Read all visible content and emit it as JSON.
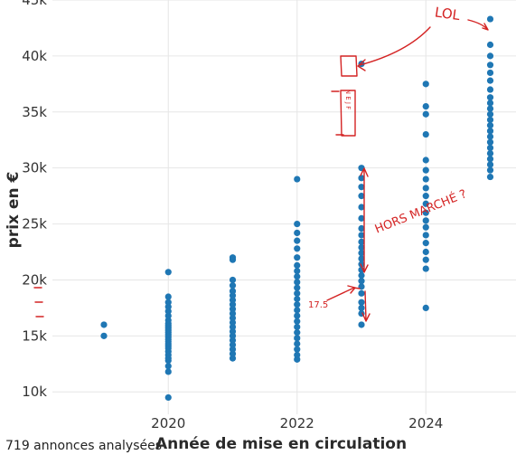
{
  "chart_data": {
    "type": "scatter",
    "xlabel": "Année de mise en circulation",
    "ylabel": "prix en €",
    "xlim": [
      2018.2,
      2025.4
    ],
    "ylim": [
      8000,
      45000
    ],
    "x_ticks": [
      2020,
      2022,
      2024
    ],
    "y_ticks": [
      10000,
      15000,
      20000,
      25000,
      30000,
      35000,
      40000,
      45000
    ],
    "x_tick_labels": [
      "2020",
      "2022",
      "2024"
    ],
    "y_tick_labels": [
      "10k",
      "15k",
      "20k",
      "25k",
      "30k",
      "35k",
      "40k",
      "45k"
    ],
    "grid": true,
    "marker_color": "#1f77b4",
    "series": [
      {
        "points": [
          [
            2019,
            16000
          ],
          [
            2019,
            15000
          ],
          [
            2020,
            9500
          ],
          [
            2020,
            11800
          ],
          [
            2020,
            12300
          ],
          [
            2020,
            12800
          ],
          [
            2020,
            13000
          ],
          [
            2020,
            13300
          ],
          [
            2020,
            13600
          ],
          [
            2020,
            13900
          ],
          [
            2020,
            14100
          ],
          [
            2020,
            14300
          ],
          [
            2020,
            14500
          ],
          [
            2020,
            14700
          ],
          [
            2020,
            14900
          ],
          [
            2020,
            15100
          ],
          [
            2020,
            15300
          ],
          [
            2020,
            15500
          ],
          [
            2020,
            15700
          ],
          [
            2020,
            15900
          ],
          [
            2020,
            16100
          ],
          [
            2020,
            16400
          ],
          [
            2020,
            16800
          ],
          [
            2020,
            17200
          ],
          [
            2020,
            17600
          ],
          [
            2020,
            18000
          ],
          [
            2020,
            18500
          ],
          [
            2020,
            20700
          ],
          [
            2021,
            13000
          ],
          [
            2021,
            13400
          ],
          [
            2021,
            13800
          ],
          [
            2021,
            14200
          ],
          [
            2021,
            14600
          ],
          [
            2021,
            15000
          ],
          [
            2021,
            15400
          ],
          [
            2021,
            15800
          ],
          [
            2021,
            16200
          ],
          [
            2021,
            16600
          ],
          [
            2021,
            17000
          ],
          [
            2021,
            17400
          ],
          [
            2021,
            17800
          ],
          [
            2021,
            18200
          ],
          [
            2021,
            18600
          ],
          [
            2021,
            19000
          ],
          [
            2021,
            19500
          ],
          [
            2021,
            20000
          ],
          [
            2021,
            21800
          ],
          [
            2021,
            22000
          ],
          [
            2022,
            12900
          ],
          [
            2022,
            13300
          ],
          [
            2022,
            13800
          ],
          [
            2022,
            14300
          ],
          [
            2022,
            14800
          ],
          [
            2022,
            15300
          ],
          [
            2022,
            15800
          ],
          [
            2022,
            16300
          ],
          [
            2022,
            16800
          ],
          [
            2022,
            17300
          ],
          [
            2022,
            17800
          ],
          [
            2022,
            18300
          ],
          [
            2022,
            18800
          ],
          [
            2022,
            19300
          ],
          [
            2022,
            19800
          ],
          [
            2022,
            20300
          ],
          [
            2022,
            20800
          ],
          [
            2022,
            21300
          ],
          [
            2022,
            22000
          ],
          [
            2022,
            22800
          ],
          [
            2022,
            23500
          ],
          [
            2022,
            24200
          ],
          [
            2022,
            25000
          ],
          [
            2022,
            29000
          ],
          [
            2023,
            16000
          ],
          [
            2023,
            17000
          ],
          [
            2023,
            17500
          ],
          [
            2023,
            18000
          ],
          [
            2023,
            18800
          ],
          [
            2023,
            19400
          ],
          [
            2023,
            19900
          ],
          [
            2023,
            20400
          ],
          [
            2023,
            20900
          ],
          [
            2023,
            21400
          ],
          [
            2023,
            21900
          ],
          [
            2023,
            22400
          ],
          [
            2023,
            22900
          ],
          [
            2023,
            23400
          ],
          [
            2023,
            24000
          ],
          [
            2023,
            24600
          ],
          [
            2023,
            25500
          ],
          [
            2023,
            26500
          ],
          [
            2023,
            27500
          ],
          [
            2023,
            28300
          ],
          [
            2023,
            29100
          ],
          [
            2023,
            30000
          ],
          [
            2023,
            39300
          ],
          [
            2024,
            17500
          ],
          [
            2024,
            21000
          ],
          [
            2024,
            21800
          ],
          [
            2024,
            22500
          ],
          [
            2024,
            23300
          ],
          [
            2024,
            24000
          ],
          [
            2024,
            24700
          ],
          [
            2024,
            25300
          ],
          [
            2024,
            26000
          ],
          [
            2024,
            26800
          ],
          [
            2024,
            27500
          ],
          [
            2024,
            28200
          ],
          [
            2024,
            29000
          ],
          [
            2024,
            29800
          ],
          [
            2024,
            30700
          ],
          [
            2024,
            33000
          ],
          [
            2024,
            34800
          ],
          [
            2024,
            35500
          ],
          [
            2024,
            37500
          ],
          [
            2025,
            29200
          ],
          [
            2025,
            29800
          ],
          [
            2025,
            30300
          ],
          [
            2025,
            30800
          ],
          [
            2025,
            31300
          ],
          [
            2025,
            31800
          ],
          [
            2025,
            32300
          ],
          [
            2025,
            32800
          ],
          [
            2025,
            33300
          ],
          [
            2025,
            33800
          ],
          [
            2025,
            34300
          ],
          [
            2025,
            34800
          ],
          [
            2025,
            35300
          ],
          [
            2025,
            35800
          ],
          [
            2025,
            36300
          ],
          [
            2025,
            37000
          ],
          [
            2025,
            37800
          ],
          [
            2025,
            38500
          ],
          [
            2025,
            39200
          ],
          [
            2025,
            40000
          ],
          [
            2025,
            41000
          ],
          [
            2025,
            43300
          ]
        ]
      }
    ],
    "annotations": {
      "footnote": "719 annonces analysées",
      "handwritten": [
        "LOL",
        "HORS MARCHÉ ?",
        "17.5",
        "N E J F"
      ]
    }
  }
}
